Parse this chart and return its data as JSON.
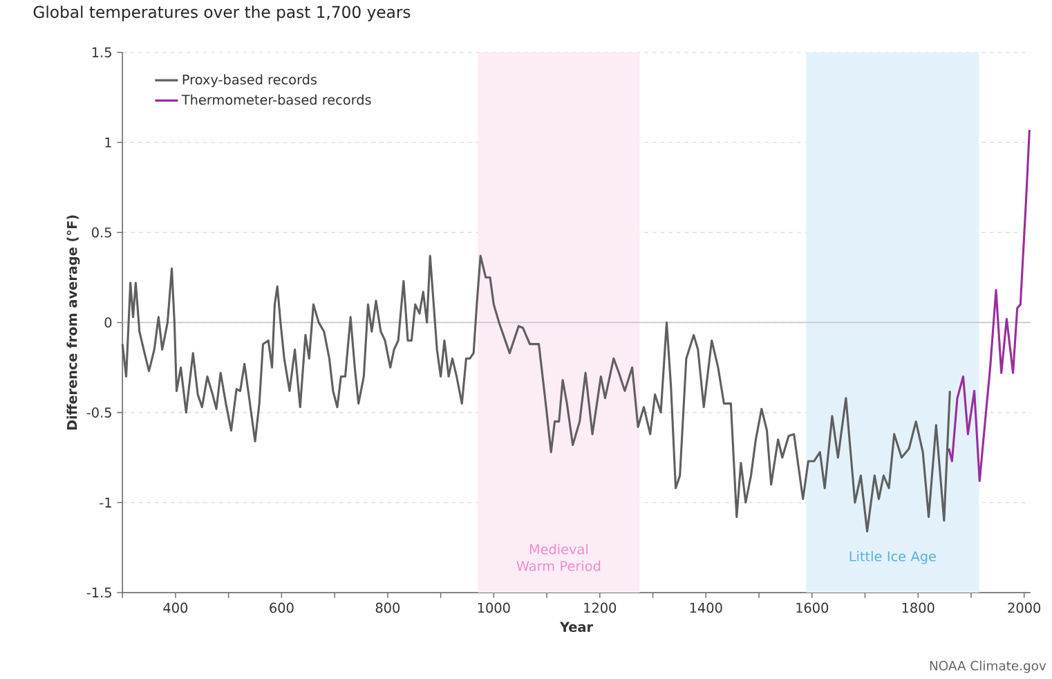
{
  "chart_data": {
    "type": "line",
    "title": "Global temperatures over the past 1,700 years",
    "xlabel": "Year",
    "ylabel": "Difference from average (°F)",
    "xlim": [
      300,
      2012
    ],
    "ylim": [
      -1.5,
      1.5
    ],
    "xticks": [
      {
        "value": 300,
        "label": null
      },
      400,
      {
        "value": 500,
        "label": null
      },
      600,
      {
        "value": 700,
        "label": null
      },
      800,
      {
        "value": 900,
        "label": null
      },
      1000,
      {
        "value": 1100,
        "label": null
      },
      1200,
      {
        "value": 1300,
        "label": null
      },
      1400,
      {
        "value": 1500,
        "label": null
      },
      1600,
      {
        "value": 1700,
        "label": null
      },
      1800,
      {
        "value": 1900,
        "label": null
      },
      2000
    ],
    "yticks": [
      -1.5,
      -1,
      -0.5,
      0,
      0.5,
      1,
      1.5
    ],
    "grid": "y",
    "legend": "top left",
    "marker": "none",
    "line_style": "solid",
    "ref_lines": [
      {
        "axis": "y",
        "value": 0,
        "color": "#c8c8c8"
      }
    ],
    "bands": [
      {
        "axis": "x",
        "from": 970,
        "to": 1275,
        "label": "Medieval Warm Period",
        "color": "#fcecf6"
      },
      {
        "axis": "x",
        "from": 1589,
        "to": 1915,
        "label": "Little Ice Age",
        "color": "#e3f2fa"
      }
    ],
    "series": [
      {
        "name": "Proxy-based records",
        "color": "#5f5f5f",
        "x": [
          300,
          307,
          315,
          320,
          325,
          332,
          340,
          350,
          360,
          368,
          375,
          385,
          393,
          398,
          402,
          410,
          420,
          433,
          442,
          450,
          460,
          470,
          477,
          485,
          495,
          505,
          515,
          522,
          530,
          538,
          550,
          558,
          565,
          575,
          582,
          587,
          592,
          598,
          605,
          615,
          625,
          635,
          645,
          652,
          660,
          670,
          680,
          690,
          697,
          705,
          712,
          720,
          730,
          738,
          745,
          755,
          763,
          770,
          778,
          787,
          795,
          805,
          812,
          820,
          830,
          838,
          845,
          852,
          860,
          867,
          874,
          880,
          888,
          893,
          900,
          907,
          915,
          922,
          930,
          940,
          948,
          955,
          962,
          968,
          975,
          985,
          993,
          1000,
          1010,
          1030,
          1047,
          1055,
          1068,
          1085,
          1098,
          1108,
          1115,
          1123,
          1130,
          1138,
          1149,
          1162,
          1173,
          1186,
          1202,
          1210,
          1226,
          1236,
          1247,
          1261,
          1272,
          1283,
          1295,
          1304,
          1315,
          1326,
          1334,
          1343,
          1351,
          1363,
          1377,
          1385,
          1396,
          1411,
          1423,
          1434,
          1447,
          1458,
          1466,
          1475,
          1485,
          1494,
          1505,
          1515,
          1523,
          1536,
          1544,
          1556,
          1566,
          1583,
          1593,
          1604,
          1615,
          1624,
          1638,
          1649,
          1664,
          1681,
          1692,
          1704,
          1718,
          1726,
          1735,
          1745,
          1755,
          1769,
          1783,
          1796,
          1809,
          1820,
          1834,
          1849,
          1860
        ],
        "values": [
          -0.12,
          -0.3,
          0.22,
          0.03,
          0.22,
          -0.05,
          -0.15,
          -0.27,
          -0.15,
          0.03,
          -0.15,
          0.0,
          0.3,
          0.0,
          -0.38,
          -0.25,
          -0.5,
          -0.17,
          -0.4,
          -0.47,
          -0.3,
          -0.4,
          -0.48,
          -0.28,
          -0.45,
          -0.6,
          -0.37,
          -0.38,
          -0.23,
          -0.4,
          -0.66,
          -0.45,
          -0.12,
          -0.1,
          -0.25,
          0.1,
          0.2,
          0.0,
          -0.2,
          -0.38,
          -0.15,
          -0.47,
          -0.07,
          -0.2,
          0.1,
          0.0,
          -0.05,
          -0.2,
          -0.38,
          -0.47,
          -0.3,
          -0.3,
          0.03,
          -0.25,
          -0.45,
          -0.3,
          0.1,
          -0.05,
          0.12,
          -0.05,
          -0.1,
          -0.25,
          -0.15,
          -0.1,
          0.23,
          -0.1,
          -0.1,
          0.1,
          0.05,
          0.17,
          0.0,
          0.37,
          0.05,
          -0.15,
          -0.3,
          -0.1,
          -0.3,
          -0.2,
          -0.3,
          -0.45,
          -0.2,
          -0.2,
          -0.17,
          0.1,
          0.37,
          0.25,
          0.25,
          0.1,
          0.0,
          -0.17,
          -0.02,
          -0.03,
          -0.12,
          -0.12,
          -0.45,
          -0.72,
          -0.55,
          -0.55,
          -0.32,
          -0.45,
          -0.68,
          -0.55,
          -0.28,
          -0.62,
          -0.3,
          -0.42,
          -0.2,
          -0.28,
          -0.38,
          -0.25,
          -0.58,
          -0.47,
          -0.62,
          -0.4,
          -0.5,
          0.0,
          -0.35,
          -0.92,
          -0.85,
          -0.2,
          -0.07,
          -0.15,
          -0.47,
          -0.1,
          -0.25,
          -0.45,
          -0.45,
          -1.08,
          -0.78,
          -1.0,
          -0.85,
          -0.65,
          -0.48,
          -0.6,
          -0.9,
          -0.65,
          -0.75,
          -0.63,
          -0.62,
          -0.98,
          -0.77,
          -0.77,
          -0.72,
          -0.92,
          -0.52,
          -0.75,
          -0.42,
          -1.0,
          -0.85,
          -1.16,
          -0.85,
          -0.98,
          -0.85,
          -0.92,
          -0.62,
          -0.75,
          -0.7,
          -0.55,
          -0.72,
          -1.08,
          -0.57,
          -1.1,
          -0.38
        ]
      },
      {
        "name": "Thermometer-based records",
        "color": "#9b2c9e",
        "x": [
          1858,
          1864,
          1874,
          1885,
          1894,
          1906,
          1916,
          1928,
          1936,
          1947,
          1957,
          1967,
          1979,
          1987,
          1993,
          2004,
          2010
        ],
        "values": [
          -0.7,
          -0.77,
          -0.42,
          -0.3,
          -0.62,
          -0.38,
          -0.88,
          -0.5,
          -0.25,
          0.18,
          -0.28,
          0.02,
          -0.28,
          0.08,
          0.1,
          0.7,
          1.07
        ]
      }
    ],
    "annotations": [
      "NOAA Climate.gov"
    ]
  }
}
